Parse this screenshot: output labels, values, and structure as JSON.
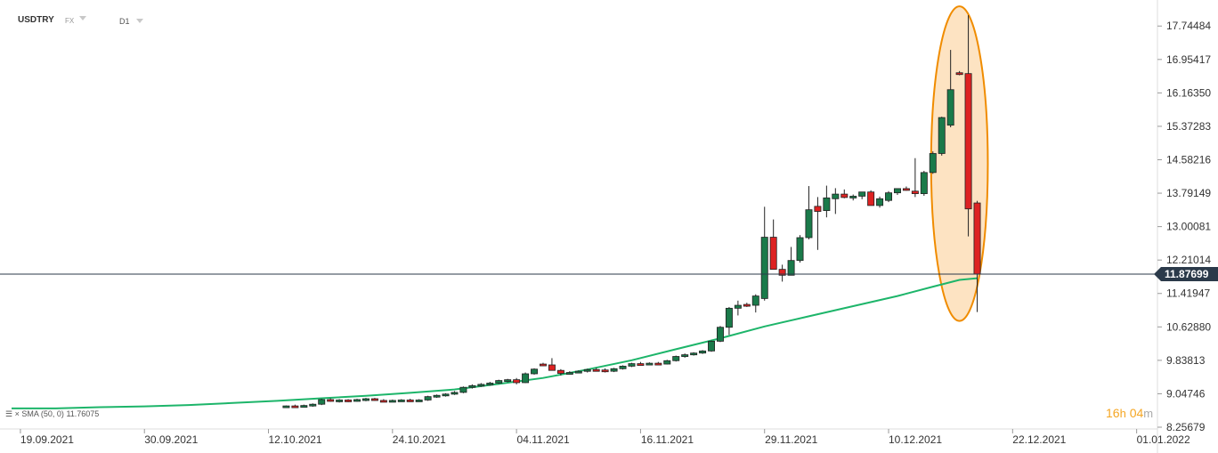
{
  "header": {
    "symbol": "USDTRY",
    "market": "FX",
    "timeframe": "D1"
  },
  "indicator": {
    "label": "SMA",
    "params": "(50, 0)",
    "value": "11.76075",
    "close_icon": "×"
  },
  "timer": {
    "hours": "16",
    "h_unit": "h",
    "minutes": "04",
    "m_unit": "m"
  },
  "colors": {
    "bull": "#1a7a4a",
    "bear": "#dd2222",
    "sma": "#1db56a",
    "highlight_fill": "#fde3c2",
    "highlight_stroke": "#f08c00",
    "timer": "#f5a623"
  },
  "chart_data": {
    "type": "candlestick",
    "ylim": [
      8.25679,
      18.15
    ],
    "y_ticks": [
      "17.74484",
      "16.95417",
      "16.16350",
      "15.37283",
      "14.58216",
      "13.79149",
      "13.00081",
      "12.21014",
      "11.41947",
      "10.62880",
      "9.83813",
      "9.04746",
      "8.25679"
    ],
    "x_ticks": [
      "19.09.2021",
      "30.09.2021",
      "12.10.2021",
      "24.10.2021",
      "04.11.2021",
      "16.11.2021",
      "29.11.2021",
      "10.12.2021",
      "22.12.2021",
      "01.01.2022"
    ],
    "current_price": "11.87699",
    "hline": 11.87699,
    "candles": [
      [
        8.74,
        8.77,
        8.72,
        8.76
      ],
      [
        8.76,
        8.79,
        8.73,
        8.75
      ],
      [
        8.75,
        8.79,
        8.72,
        8.77
      ],
      [
        8.77,
        8.82,
        8.74,
        8.8
      ],
      [
        8.8,
        8.93,
        8.78,
        8.91
      ],
      [
        8.91,
        8.94,
        8.86,
        8.88
      ],
      [
        8.88,
        8.92,
        8.84,
        8.9
      ],
      [
        8.9,
        8.92,
        8.85,
        8.87
      ],
      [
        8.87,
        8.93,
        8.86,
        8.91
      ],
      [
        8.91,
        8.95,
        8.87,
        8.93
      ],
      [
        8.93,
        8.95,
        8.88,
        8.89
      ],
      [
        8.89,
        8.92,
        8.86,
        8.88
      ],
      [
        8.88,
        8.91,
        8.86,
        8.89
      ],
      [
        8.89,
        8.92,
        8.87,
        8.9
      ],
      [
        8.9,
        8.93,
        8.87,
        8.88
      ],
      [
        8.88,
        8.92,
        8.86,
        8.9
      ],
      [
        8.9,
        9.0,
        8.88,
        8.98
      ],
      [
        8.98,
        9.03,
        8.95,
        9.01
      ],
      [
        9.01,
        9.06,
        8.98,
        9.04
      ],
      [
        9.04,
        9.11,
        9.02,
        9.08
      ],
      [
        9.08,
        9.22,
        9.06,
        9.2
      ],
      [
        9.2,
        9.27,
        9.17,
        9.24
      ],
      [
        9.24,
        9.3,
        9.21,
        9.27
      ],
      [
        9.27,
        9.33,
        9.24,
        9.3
      ],
      [
        9.3,
        9.38,
        9.28,
        9.36
      ],
      [
        9.36,
        9.4,
        9.32,
        9.38
      ],
      [
        9.38,
        9.42,
        9.27,
        9.31
      ],
      [
        9.31,
        9.55,
        9.3,
        9.52
      ],
      [
        9.52,
        9.65,
        9.5,
        9.63
      ],
      [
        9.75,
        9.78,
        9.7,
        9.73
      ],
      [
        9.73,
        9.89,
        9.6,
        9.6
      ],
      [
        9.6,
        9.63,
        9.48,
        9.53
      ],
      [
        9.53,
        9.58,
        9.5,
        9.55
      ],
      [
        9.55,
        9.6,
        9.53,
        9.58
      ],
      [
        9.58,
        9.64,
        9.55,
        9.62
      ],
      [
        9.62,
        9.66,
        9.58,
        9.61
      ],
      [
        9.61,
        9.65,
        9.55,
        9.58
      ],
      [
        9.58,
        9.66,
        9.56,
        9.64
      ],
      [
        9.64,
        9.72,
        9.62,
        9.7
      ],
      [
        9.7,
        9.78,
        9.68,
        9.76
      ],
      [
        9.76,
        9.8,
        9.72,
        9.74
      ],
      [
        9.74,
        9.79,
        9.72,
        9.77
      ],
      [
        9.77,
        9.8,
        9.73,
        9.75
      ],
      [
        9.75,
        9.85,
        9.74,
        9.83
      ],
      [
        9.83,
        9.95,
        9.81,
        9.93
      ],
      [
        9.93,
        10.0,
        9.9,
        9.97
      ],
      [
        9.97,
        10.03,
        9.95,
        10.01
      ],
      [
        10.01,
        10.08,
        9.99,
        10.06
      ],
      [
        10.06,
        10.31,
        10.04,
        10.29
      ],
      [
        10.29,
        10.65,
        10.27,
        10.62
      ],
      [
        10.62,
        11.1,
        10.44,
        11.07
      ],
      [
        11.07,
        11.25,
        10.9,
        11.14
      ],
      [
        11.16,
        11.2,
        11.1,
        11.14
      ],
      [
        11.14,
        11.4,
        10.97,
        11.36
      ],
      [
        11.3,
        13.47,
        11.25,
        12.75
      ],
      [
        12.75,
        13.17,
        12.08,
        11.99
      ],
      [
        11.99,
        12.1,
        11.7,
        11.85
      ],
      [
        11.85,
        12.52,
        11.85,
        12.2
      ],
      [
        12.2,
        12.8,
        12.15,
        12.74
      ],
      [
        12.74,
        13.96,
        12.7,
        13.4
      ],
      [
        13.48,
        13.7,
        12.45,
        13.36
      ],
      [
        13.38,
        13.97,
        13.22,
        13.68
      ],
      [
        13.66,
        13.91,
        13.3,
        13.77
      ],
      [
        13.77,
        13.88,
        13.67,
        13.69
      ],
      [
        13.69,
        13.76,
        13.62,
        13.72
      ],
      [
        13.72,
        13.82,
        13.65,
        13.82
      ],
      [
        13.82,
        13.86,
        13.5,
        13.5
      ],
      [
        13.5,
        13.71,
        13.45,
        13.66
      ],
      [
        13.62,
        13.84,
        13.58,
        13.8
      ],
      [
        13.8,
        13.9,
        13.75,
        13.9
      ],
      [
        13.9,
        13.95,
        13.85,
        13.88
      ],
      [
        13.84,
        14.62,
        13.7,
        13.78
      ],
      [
        13.78,
        14.32,
        13.73,
        14.28
      ],
      [
        14.28,
        14.78,
        14.25,
        14.73
      ],
      [
        14.73,
        15.6,
        14.68,
        15.58
      ],
      [
        15.4,
        17.18,
        15.35,
        16.24
      ],
      [
        16.64,
        16.68,
        16.58,
        16.62
      ],
      [
        16.62,
        18.0,
        12.77,
        13.42
      ],
      [
        13.56,
        13.61,
        10.98,
        11.88
      ]
    ],
    "sma": [
      [
        0,
        8.7
      ],
      [
        5,
        8.7
      ],
      [
        10,
        8.73
      ],
      [
        15,
        8.75
      ],
      [
        20,
        8.78
      ],
      [
        25,
        8.83
      ],
      [
        30,
        8.88
      ],
      [
        35,
        8.94
      ],
      [
        40,
        9.0
      ],
      [
        45,
        9.07
      ],
      [
        50,
        9.15
      ],
      [
        55,
        9.28
      ],
      [
        60,
        9.42
      ],
      [
        65,
        9.62
      ],
      [
        70,
        9.84
      ],
      [
        75,
        10.1
      ],
      [
        80,
        10.36
      ],
      [
        85,
        10.64
      ],
      [
        90,
        10.88
      ],
      [
        95,
        11.12
      ],
      [
        100,
        11.36
      ],
      [
        104,
        11.58
      ],
      [
        107,
        11.74
      ],
      [
        109,
        11.78
      ]
    ],
    "x_tick_indices": [
      1,
      15,
      29,
      43,
      57,
      71,
      85,
      99,
      113,
      127
    ],
    "slot_width": 9.95,
    "highlight_range": [
      105,
      109
    ]
  }
}
